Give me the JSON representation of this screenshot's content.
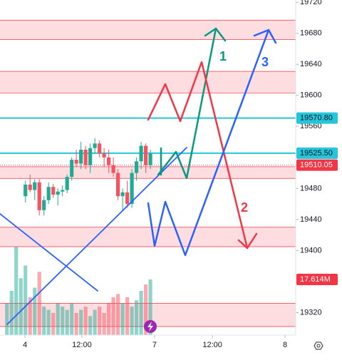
{
  "chart_data": {
    "type": "candlestick",
    "xlim": [
      -0.5,
      63.4
    ],
    "xticks": [
      {
        "value": 4.9,
        "label": "4"
      },
      {
        "value": 17.2,
        "label": "12:00"
      },
      {
        "value": 32.9,
        "label": "7"
      },
      {
        "value": 45.4,
        "label": "12:00"
      },
      {
        "value": 61.1,
        "label": "8"
      }
    ],
    "ylim": [
      19291,
      19723
    ],
    "yticks": [
      19720,
      19680,
      19640,
      19600,
      19560,
      19480,
      19440,
      19400,
      19320
    ],
    "up_color": "#22ab94",
    "down_color": "#f7525f",
    "x": [
      1,
      2,
      3,
      4,
      5,
      6,
      7,
      8,
      9,
      10,
      11,
      12,
      13,
      14,
      15,
      16,
      17,
      18,
      19,
      20,
      21,
      22,
      23,
      24,
      25,
      26,
      27,
      28,
      29,
      30,
      31,
      32
    ],
    "open": [
      null,
      null,
      null,
      null,
      19470,
      19485,
      19478,
      19488,
      19452,
      19465,
      19482,
      19472,
      19476,
      19478,
      19495,
      19517,
      19512,
      19530,
      19510,
      19532,
      19538,
      19525,
      19520,
      19510,
      19500,
      19470,
      19475,
      19460,
      19500,
      19515,
      19535,
      19510
    ],
    "high": [
      null,
      null,
      null,
      null,
      19490,
      19498,
      19492,
      19492,
      19470,
      19488,
      19486,
      19480,
      19484,
      19498,
      19520,
      19530,
      19540,
      19535,
      19538,
      19545,
      19542,
      19532,
      19530,
      19520,
      19505,
      19480,
      19490,
      19505,
      19520,
      19540,
      19538,
      19530
    ],
    "low": [
      null,
      null,
      null,
      null,
      19462,
      19475,
      19465,
      19445,
      19445,
      19460,
      19468,
      19458,
      19470,
      19474,
      19490,
      19508,
      19505,
      19505,
      19500,
      19525,
      19520,
      19508,
      19500,
      19495,
      19465,
      19452,
      19455,
      19455,
      19490,
      19505,
      19500,
      19505
    ],
    "close": [
      null,
      null,
      null,
      null,
      19485,
      19478,
      19488,
      19452,
      19465,
      19482,
      19472,
      19476,
      19478,
      19495,
      19517,
      19512,
      19530,
      19510,
      19532,
      19538,
      19525,
      19520,
      19510,
      19500,
      19470,
      19475,
      19460,
      19500,
      19515,
      19535,
      19510,
      19525
    ],
    "volume": {
      "values": [
        10,
        14,
        28,
        18,
        22,
        12,
        15,
        20,
        9,
        8,
        7,
        10,
        9,
        8,
        10,
        7,
        8,
        9,
        6,
        8,
        9,
        7,
        10,
        12,
        13,
        10,
        12,
        9,
        11,
        14,
        16,
        17.614
      ],
      "last_label": "17.614M"
    },
    "zones": [
      [
        19697,
        19672
      ],
      [
        19631,
        19603
      ],
      [
        19508,
        19493
      ],
      [
        19430,
        19405
      ],
      [
        19332,
        19302
      ]
    ],
    "price_lines": [
      {
        "value": 19570.8,
        "label": "19570.80",
        "color": "#26c6da"
      },
      {
        "value": 19525.5,
        "label": "19525.50",
        "color": "#26c6da"
      },
      {
        "value": 19510.05,
        "label": "19510.05",
        "color": "#f23645"
      }
    ],
    "annotations": [
      "1",
      "2",
      "3"
    ]
  }
}
